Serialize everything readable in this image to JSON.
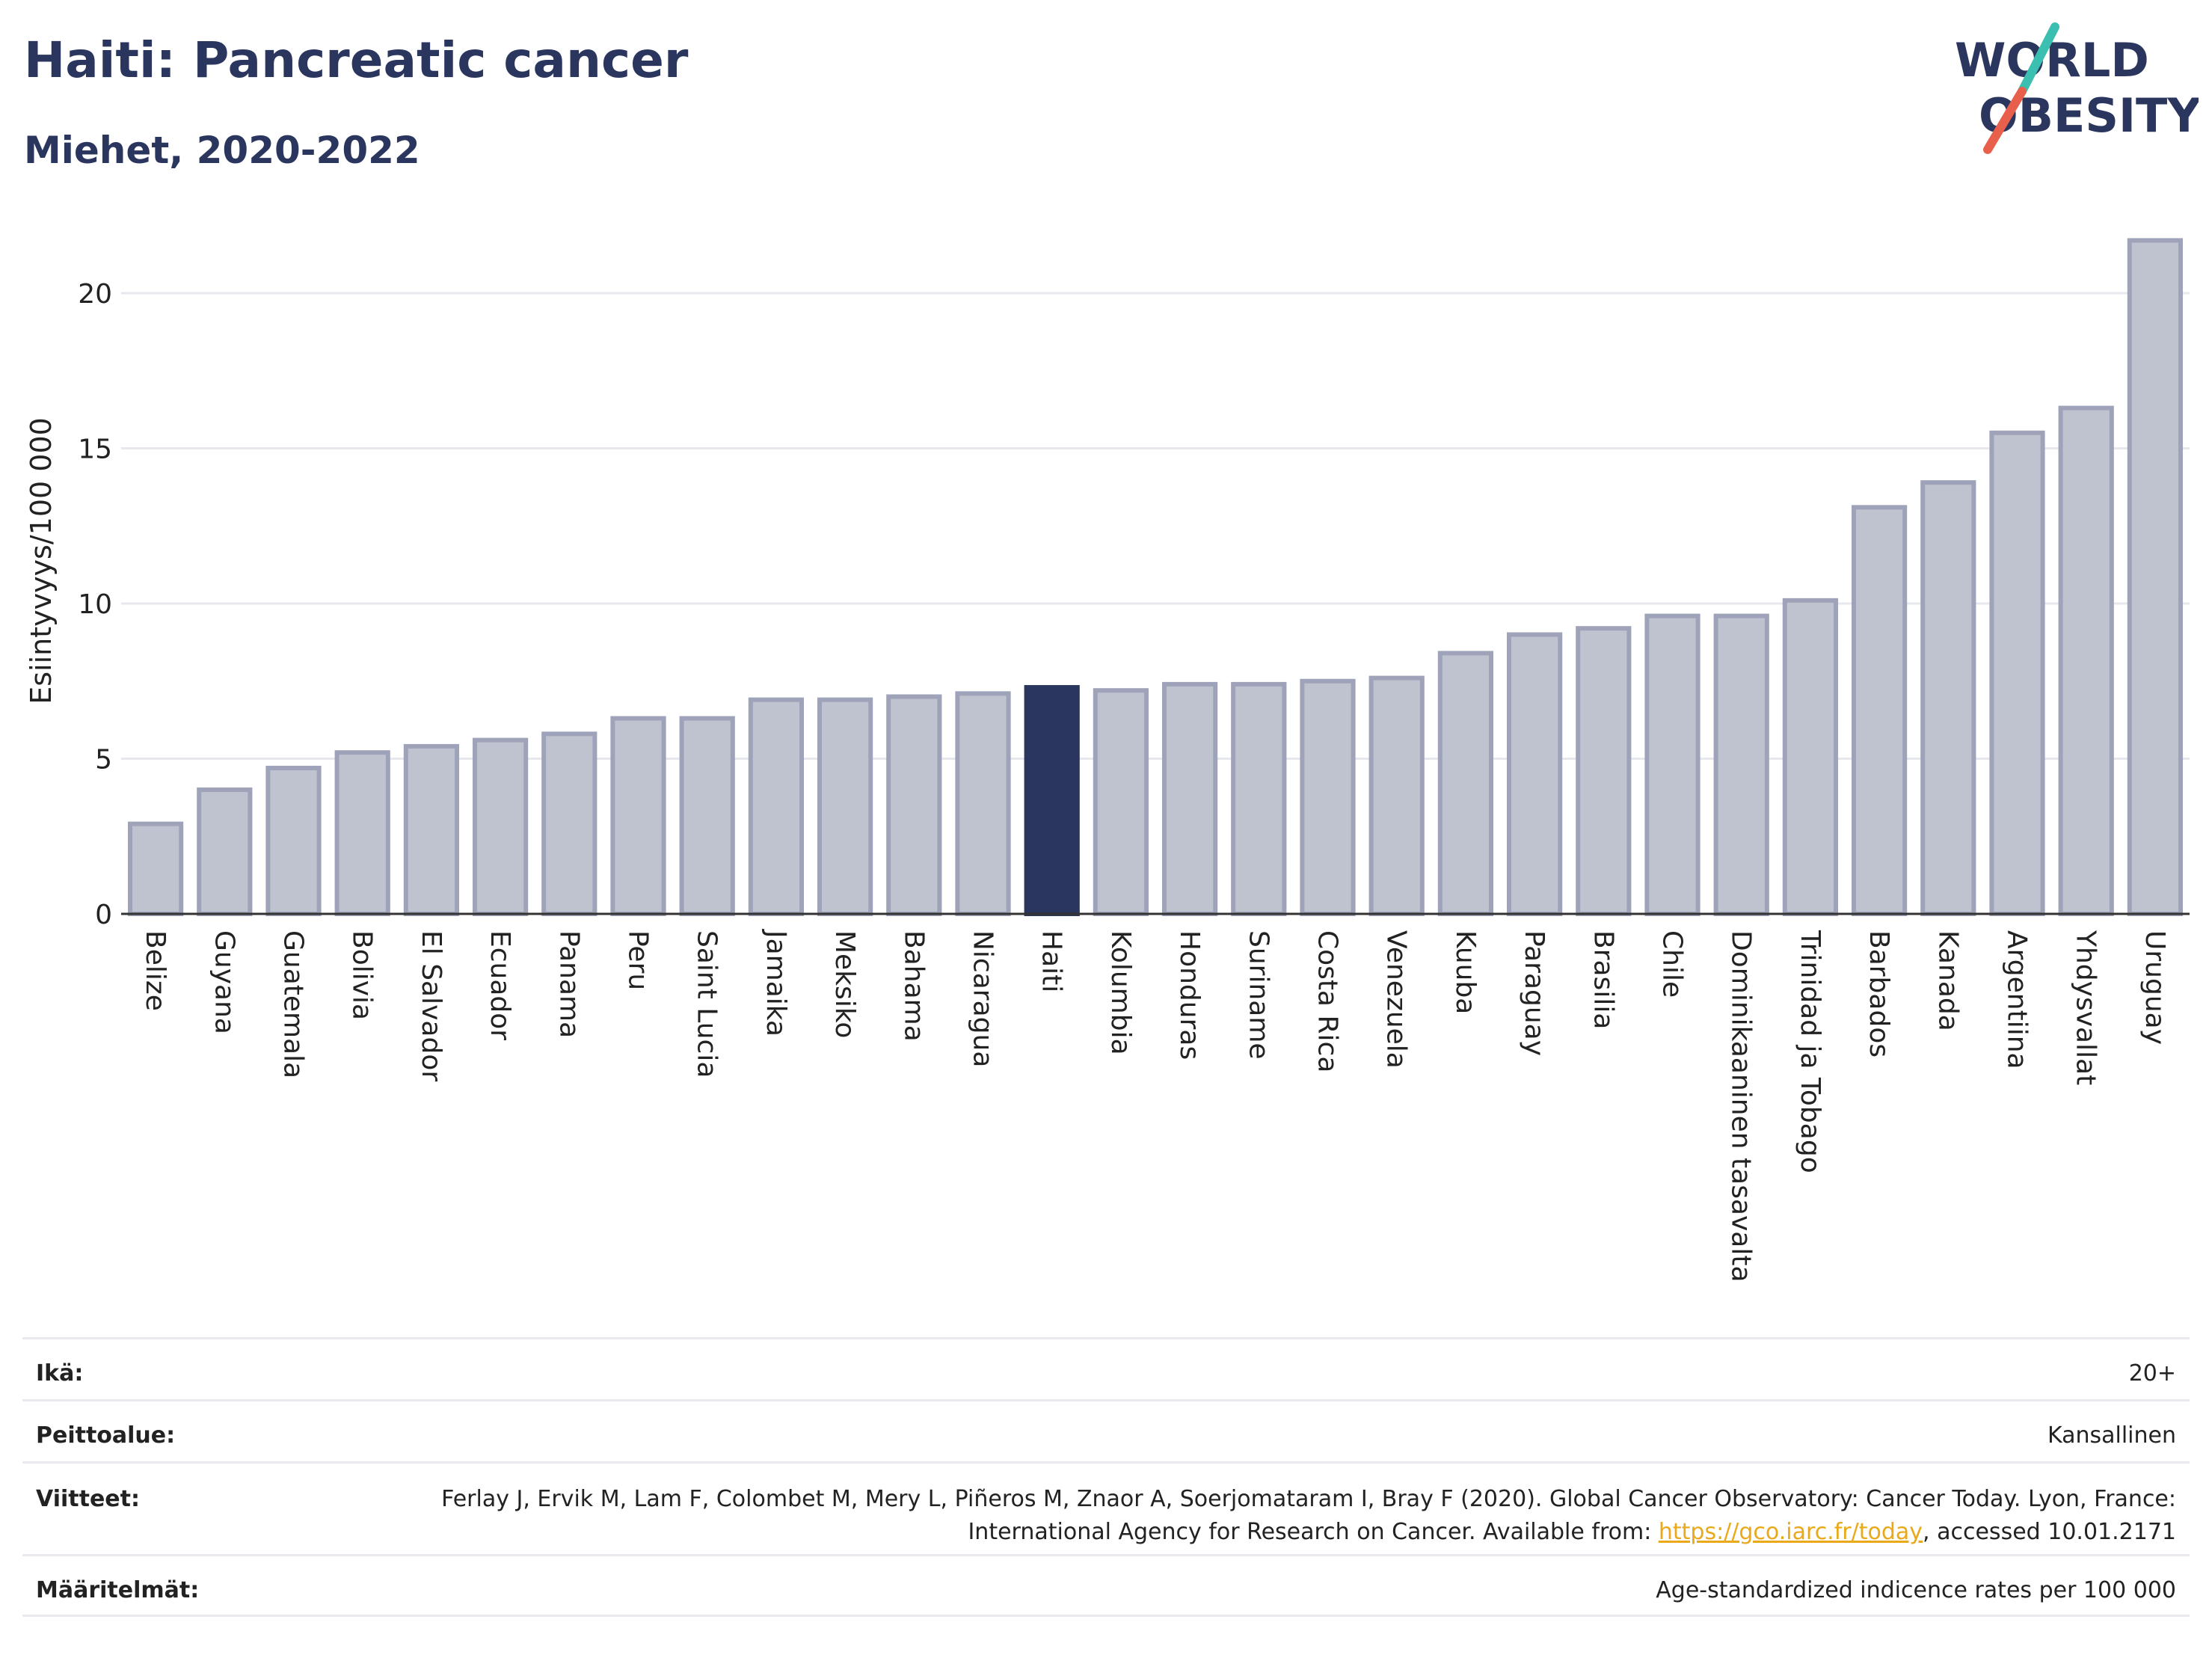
{
  "header": {
    "title": "Haiti: Pancreatic cancer",
    "subtitle": "Miehet, 2020-2022"
  },
  "logo": {
    "line1": "WORLD",
    "line2": "OBESITY",
    "accent_teal": "#3bbfb0",
    "accent_red": "#e8604c"
  },
  "colors": {
    "bar": "#bfc3d0",
    "bar_border": "#9ea3b9",
    "highlight": "#2b365e",
    "grid": "#e6e8ee",
    "axis": "#333333"
  },
  "chart_data": {
    "type": "bar",
    "title": "Haiti: Pancreatic cancer",
    "subtitle": "Miehet, 2020-2022",
    "ylabel": "Esiintyvyys/100 000",
    "xlabel": "",
    "ylim": [
      0,
      22
    ],
    "yticks": [
      0,
      5,
      10,
      15,
      20
    ],
    "grid": true,
    "highlight": "Haiti",
    "categories": [
      "Belize",
      "Guyana",
      "Guatemala",
      "Bolivia",
      "El Salvador",
      "Ecuador",
      "Panama",
      "Peru",
      "Saint Lucia",
      "Jamaika",
      "Meksiko",
      "Bahama",
      "Nicaragua",
      "Haiti",
      "Kolumbia",
      "Honduras",
      "Suriname",
      "Costa Rica",
      "Venezuela",
      "Kuuba",
      "Paraguay",
      "Brasilia",
      "Chile",
      "Dominikaaninen tasavalta",
      "Trinidad ja Tobago",
      "Barbados",
      "Kanada",
      "Argentiina",
      "Yhdysvallat",
      "Uruguay"
    ],
    "values": [
      2.9,
      4.0,
      4.7,
      5.2,
      5.4,
      5.6,
      5.8,
      6.3,
      6.3,
      6.9,
      6.9,
      7.0,
      7.1,
      7.3,
      7.2,
      7.4,
      7.4,
      7.5,
      7.6,
      8.4,
      9.0,
      9.2,
      9.6,
      9.6,
      10.1,
      13.1,
      13.9,
      15.5,
      16.3,
      21.7
    ]
  },
  "info": {
    "age_label": "Ikä:",
    "age_value": "20+",
    "coverage_label": "Peittoalue:",
    "coverage_value": "Kansallinen",
    "references_label": "Viitteet:",
    "references_text_1": "Ferlay J, Ervik M, Lam F, Colombet M, Mery L, Piñeros M, Znaor A, Soerjomataram I, Bray F (2020). Global Cancer Observatory: Cancer Today. Lyon, France: International Agency for Research on Cancer. Available from: ",
    "references_link": "https://gco.iarc.fr/today",
    "references_text_2": ", accessed 10.01.2171",
    "definitions_label": "Määritelmät:",
    "definitions_value": "Age-standardized indicence rates per 100 000"
  }
}
